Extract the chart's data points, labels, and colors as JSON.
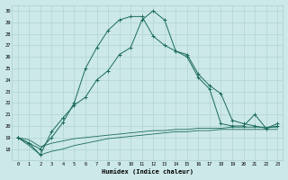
{
  "title": "",
  "xlabel": "Humidex (Indice chaleur)",
  "bg_color": "#cce8e8",
  "grid_color": "#aacfcf",
  "line_color": "#1a6b5a",
  "xlim": [
    -0.5,
    23.5
  ],
  "ylim": [
    17,
    30.5
  ],
  "yticks": [
    18,
    19,
    20,
    21,
    22,
    23,
    24,
    25,
    26,
    27,
    28,
    29,
    30
  ],
  "xticks": [
    0,
    1,
    2,
    3,
    4,
    5,
    6,
    7,
    8,
    9,
    10,
    11,
    12,
    13,
    14,
    15,
    16,
    17,
    18,
    19,
    20,
    21,
    22,
    23
  ],
  "line1_x": [
    0,
    1,
    2,
    3,
    4,
    5,
    6,
    7,
    8,
    9,
    10,
    11,
    12,
    13,
    14,
    15,
    16,
    17,
    18,
    19,
    20,
    21,
    22,
    23
  ],
  "line1_y": [
    19.0,
    18.5,
    17.5,
    19.5,
    20.7,
    21.8,
    22.5,
    24.0,
    24.8,
    26.2,
    26.8,
    29.2,
    30.0,
    29.2,
    26.5,
    26.2,
    24.5,
    23.5,
    22.8,
    20.5,
    20.2,
    20.0,
    19.8,
    20.0
  ],
  "line2_x": [
    0,
    1,
    2,
    3,
    4,
    5,
    6,
    7,
    8,
    9,
    10,
    11,
    12,
    13,
    14,
    15,
    16,
    17,
    18,
    19,
    20,
    21,
    22,
    23
  ],
  "line2_y": [
    19.0,
    18.5,
    18.0,
    19.0,
    20.3,
    22.0,
    25.0,
    26.8,
    28.3,
    29.2,
    29.5,
    29.5,
    27.8,
    27.0,
    26.5,
    26.0,
    24.2,
    23.2,
    20.2,
    20.0,
    20.0,
    21.0,
    19.8,
    20.2
  ],
  "line3_x": [
    0,
    1,
    2,
    3,
    4,
    5,
    6,
    7,
    8,
    9,
    10,
    11,
    12,
    13,
    14,
    15,
    16,
    17,
    18,
    19,
    20,
    21,
    22,
    23
  ],
  "line3_y": [
    19.0,
    18.3,
    17.5,
    17.8,
    18.0,
    18.3,
    18.5,
    18.7,
    18.9,
    19.0,
    19.1,
    19.2,
    19.3,
    19.4,
    19.5,
    19.5,
    19.6,
    19.6,
    19.7,
    19.7,
    19.7,
    19.7,
    19.7,
    19.7
  ],
  "line4_x": [
    0,
    1,
    2,
    3,
    4,
    5,
    6,
    7,
    8,
    9,
    10,
    11,
    12,
    13,
    14,
    15,
    16,
    17,
    18,
    19,
    20,
    21,
    22,
    23
  ],
  "line4_y": [
    19.0,
    18.8,
    18.2,
    18.5,
    18.7,
    18.9,
    19.0,
    19.1,
    19.2,
    19.3,
    19.4,
    19.5,
    19.6,
    19.6,
    19.7,
    19.7,
    19.8,
    19.8,
    19.8,
    19.9,
    19.9,
    19.9,
    19.9,
    19.9
  ]
}
